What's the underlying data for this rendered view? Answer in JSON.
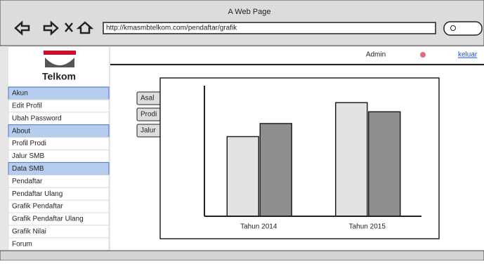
{
  "browser": {
    "title": "A Web Page",
    "url": "http://kmasmbtelkom.com/pendaftar/grafik"
  },
  "header": {
    "logo": "Telkom",
    "user": "Admin",
    "logout": "keluar"
  },
  "menu": [
    {
      "label": "Akun",
      "section": true
    },
    {
      "label": "Edit Profil",
      "section": false
    },
    {
      "label": "Ubah Password",
      "section": false
    },
    {
      "label": "About",
      "section": true
    },
    {
      "label": "Profil Prodi",
      "section": false
    },
    {
      "label": "Jalur SMB",
      "section": false
    },
    {
      "label": "Data SMB",
      "section": true
    },
    {
      "label": "Pendaftar",
      "section": false
    },
    {
      "label": "Pendaftar Ulang",
      "section": false
    },
    {
      "label": "Grafik Pendaftar",
      "section": false
    },
    {
      "label": "Grafik Pendaftar Ulang",
      "section": false
    },
    {
      "label": "Grafik Nilai",
      "section": false
    },
    {
      "label": "Forum",
      "section": false
    }
  ],
  "tabs": [
    "Asal",
    "Prodi",
    "Jalur"
  ],
  "chart_data": {
    "type": "bar",
    "categories": [
      "Tahun 2014",
      "Tahun 2015"
    ],
    "series": [
      {
        "color": "#e2e2e2",
        "values": [
          61,
          87
        ]
      },
      {
        "color": "#8e8e8e",
        "values": [
          71,
          80
        ]
      }
    ],
    "ylim": [
      0,
      100
    ]
  }
}
